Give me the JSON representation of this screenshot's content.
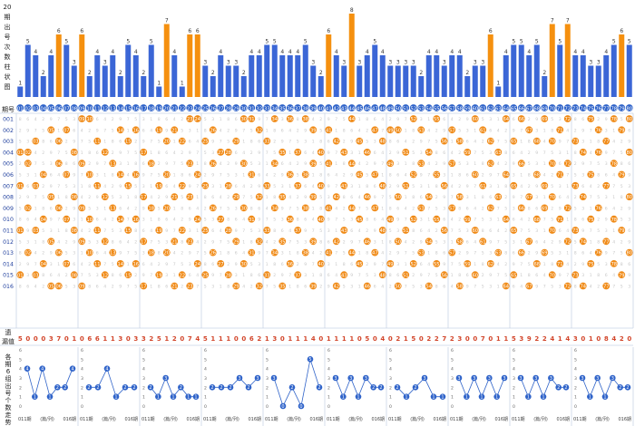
{
  "ui": {
    "title_vertical": [
      "20",
      "期",
      "出",
      "号",
      "次",
      "数",
      "柱",
      "状",
      "图"
    ],
    "period_header": "期号",
    "stat_label": [
      "遗",
      "漏值"
    ],
    "mini_label": [
      "各",
      "期",
      "6",
      "组",
      "出",
      "号",
      "个",
      "数",
      "走",
      "势"
    ],
    "mini_x_left": "011期",
    "mini_x_mid": "(篇/列)",
    "mini_x_right": "016期",
    "mini_y_ticks": [
      "6",
      "5",
      "4",
      "3",
      "2",
      "1",
      "0"
    ]
  },
  "colors": {
    "bar_blue": "#3b66d6",
    "bar_orange": "#f5900f",
    "ball_blue": "#2f63c9",
    "ball_orange": "#f08a16",
    "grid_line": "#c9d4e6",
    "text_blue": "#1f3f9e"
  },
  "chart_data": {
    "type": "bar",
    "title": "20期出号次数柱状图",
    "numbers": [
      "01",
      "02",
      "03",
      "04",
      "05",
      "06",
      "07",
      "08",
      "09",
      "10",
      "11",
      "12",
      "13",
      "14",
      "15",
      "16",
      "17",
      "18",
      "19",
      "20",
      "21",
      "22",
      "23",
      "24",
      "25",
      "26",
      "27",
      "28",
      "29",
      "30",
      "31",
      "32",
      "33",
      "34",
      "35",
      "36",
      "37",
      "38",
      "39",
      "40",
      "41",
      "42",
      "43",
      "44",
      "45",
      "46",
      "47",
      "48",
      "49",
      "50",
      "51",
      "52",
      "53",
      "54",
      "55",
      "56",
      "57",
      "58",
      "59",
      "60",
      "61",
      "62",
      "63",
      "64",
      "65",
      "66",
      "67",
      "68",
      "69",
      "70",
      "71",
      "72",
      "73",
      "74",
      "75",
      "76",
      "77",
      "78",
      "79",
      "80"
    ],
    "counts": [
      1,
      5,
      4,
      2,
      4,
      6,
      5,
      3,
      6,
      2,
      4,
      3,
      4,
      2,
      5,
      4,
      2,
      5,
      1,
      7,
      4,
      1,
      6,
      6,
      3,
      2,
      4,
      3,
      3,
      2,
      4,
      4,
      5,
      5,
      4,
      4,
      4,
      5,
      3,
      2,
      6,
      4,
      3,
      8,
      3,
      4,
      5,
      4,
      3,
      3,
      3,
      3,
      2,
      4,
      4,
      3,
      4,
      4,
      2,
      3,
      3,
      6,
      1,
      4,
      5,
      5,
      4,
      5,
      2,
      7,
      5,
      7,
      4,
      4,
      3,
      3,
      4,
      5,
      6,
      5
    ],
    "highlight_counts": [
      6,
      7,
      8
    ],
    "periods": [
      "001",
      "002",
      "003",
      "004",
      "005",
      "006",
      "007",
      "008",
      "009",
      "010",
      "011",
      "012",
      "013",
      "014",
      "015",
      "016"
    ],
    "draws": [
      [
        9,
        10,
        23,
        24,
        30,
        31,
        34,
        36,
        38,
        44,
        52,
        55,
        60,
        64,
        66,
        69,
        72,
        75,
        78,
        80
      ],
      [
        5,
        7,
        14,
        16,
        19,
        21,
        26,
        32,
        39,
        41,
        47,
        49,
        50,
        53,
        57,
        61,
        67,
        71,
        76,
        79
      ],
      [
        3,
        6,
        11,
        15,
        20,
        22,
        25,
        29,
        33,
        42,
        45,
        48,
        56,
        58,
        62,
        65,
        68,
        70,
        73,
        77
      ],
      [
        1,
        2,
        8,
        12,
        17,
        27,
        28,
        35,
        37,
        40,
        43,
        46,
        51,
        54,
        59,
        63,
        74,
        74,
        76,
        80
      ],
      [
        2,
        6,
        9,
        13,
        18,
        23,
        26,
        30,
        34,
        39,
        41,
        44,
        49,
        53,
        57,
        62,
        66,
        70,
        72,
        78
      ],
      [
        4,
        7,
        10,
        14,
        16,
        20,
        24,
        31,
        36,
        38,
        45,
        47,
        52,
        55,
        60,
        64,
        68,
        71,
        75,
        79
      ],
      [
        1,
        3,
        11,
        15,
        19,
        22,
        25,
        28,
        33,
        37,
        40,
        43,
        48,
        51,
        56,
        61,
        65,
        69,
        73,
        77
      ],
      [
        5,
        8,
        12,
        17,
        21,
        23,
        29,
        32,
        35,
        39,
        42,
        46,
        50,
        54,
        58,
        63,
        67,
        70,
        74,
        80
      ],
      [
        2,
        6,
        9,
        13,
        18,
        20,
        26,
        30,
        34,
        38,
        41,
        44,
        47,
        53,
        57,
        62,
        66,
        69,
        72,
        76
      ],
      [
        4,
        7,
        10,
        14,
        16,
        24,
        27,
        31,
        36,
        40,
        45,
        49,
        52,
        55,
        59,
        64,
        68,
        71,
        75,
        78
      ],
      [
        1,
        3,
        8,
        11,
        15,
        19,
        22,
        25,
        28,
        33,
        37,
        43,
        48,
        51,
        56,
        60,
        65,
        70,
        73,
        79
      ],
      [
        5,
        9,
        12,
        17,
        21,
        23,
        29,
        32,
        35,
        39,
        42,
        46,
        50,
        54,
        58,
        61,
        67,
        72,
        74,
        77
      ],
      [
        2,
        6,
        10,
        13,
        18,
        20,
        26,
        31,
        34,
        38,
        41,
        44,
        47,
        53,
        57,
        63,
        66,
        69,
        76,
        80
      ],
      [
        4,
        7,
        11,
        14,
        16,
        24,
        27,
        30,
        36,
        40,
        45,
        49,
        52,
        55,
        59,
        62,
        68,
        71,
        75,
        78
      ],
      [
        1,
        3,
        8,
        12,
        15,
        19,
        22,
        25,
        28,
        33,
        37,
        43,
        48,
        51,
        56,
        60,
        65,
        70,
        73,
        79
      ],
      [
        5,
        6,
        9,
        17,
        21,
        23,
        29,
        32,
        35,
        39,
        42,
        46,
        50,
        54,
        58,
        64,
        67,
        72,
        74,
        77
      ]
    ],
    "omission": [
      5,
      0,
      0,
      0,
      3,
      7,
      0,
      1,
      0,
      6,
      6,
      1,
      1,
      3,
      0,
      3,
      3,
      2,
      5,
      1,
      2,
      0,
      7,
      4,
      5,
      1,
      1,
      1,
      0,
      0,
      6,
      2,
      1,
      3,
      0,
      1,
      1,
      1,
      4,
      0,
      1,
      1,
      1,
      1,
      0,
      5,
      0,
      4,
      0,
      2,
      1,
      5,
      0,
      2,
      2,
      7,
      2,
      3,
      0,
      0,
      7,
      0,
      1,
      1,
      5,
      3,
      9,
      2,
      2,
      4,
      1,
      4,
      3,
      0,
      1,
      0,
      8,
      4,
      2,
      0
    ],
    "mini_groups": [
      [
        4,
        1,
        4,
        1,
        2,
        2,
        4
      ],
      [
        2,
        2,
        4,
        1,
        2,
        2
      ],
      [
        2,
        1,
        3,
        1,
        2,
        1,
        1
      ],
      [
        2,
        2,
        2,
        3,
        2,
        3
      ],
      [
        3,
        0,
        2,
        0,
        5,
        2
      ],
      [
        3,
        1,
        3,
        1,
        3,
        2,
        2
      ],
      [
        2,
        1,
        2,
        3,
        1,
        1
      ],
      [
        3,
        1,
        3,
        1,
        3,
        1,
        3
      ],
      [
        3,
        1,
        3,
        1,
        3,
        2,
        2
      ],
      [
        3,
        1,
        3,
        1,
        3,
        2,
        2
      ]
    ]
  }
}
